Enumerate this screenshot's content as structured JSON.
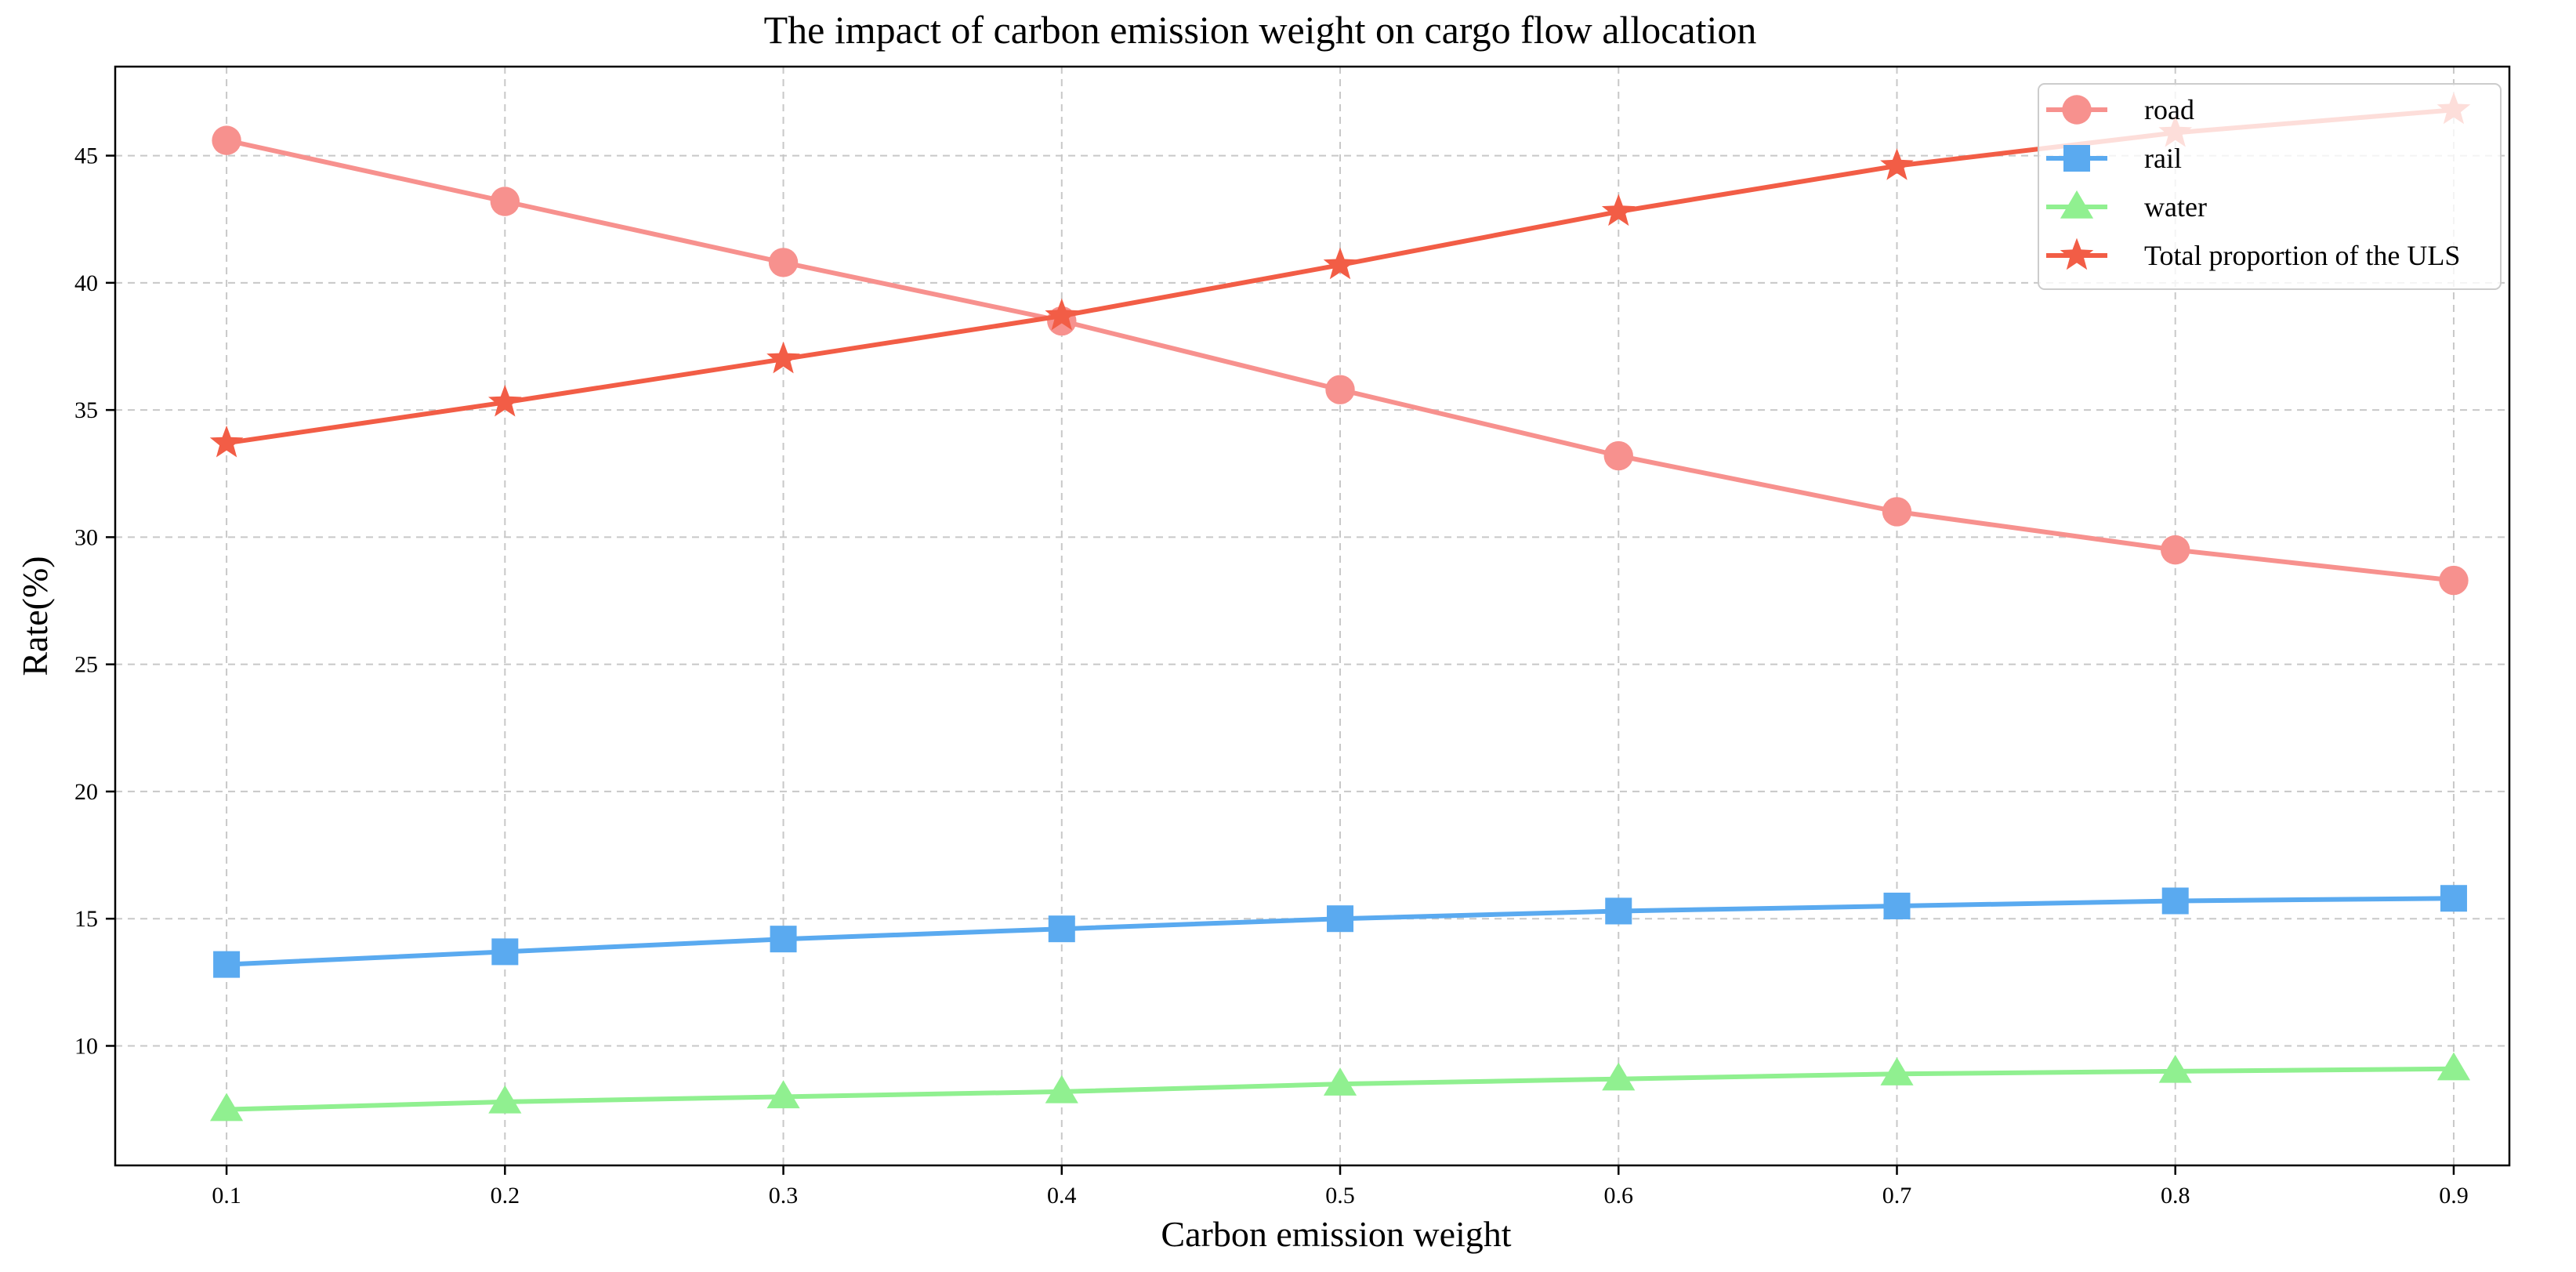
{
  "chart_data": {
    "type": "line",
    "title": "The impact of carbon emission weight on cargo flow allocation",
    "xlabel": "Carbon emission weight",
    "ylabel": "Rate(%)",
    "x": [
      0.1,
      0.2,
      0.3,
      0.4,
      0.5,
      0.6,
      0.7,
      0.8,
      0.9
    ],
    "x_tick_labels": [
      "0.1",
      "0.2",
      "0.3",
      "0.4",
      "0.5",
      "0.6",
      "0.7",
      "0.8",
      "0.9"
    ],
    "xlim": [
      0.06,
      0.92
    ],
    "ylim": [
      5.3,
      48.5
    ],
    "y_ticks": [
      10,
      15,
      20,
      25,
      30,
      35,
      40,
      45
    ],
    "y_tick_labels": [
      "10",
      "15",
      "20",
      "25",
      "30",
      "35",
      "40",
      "45"
    ],
    "grid": true,
    "legend_position": "top-right",
    "series": [
      {
        "name": "road",
        "color": "#F7918E",
        "marker": "circle",
        "values": [
          45.6,
          43.2,
          40.8,
          38.5,
          35.8,
          33.2,
          31.0,
          29.5,
          28.3
        ]
      },
      {
        "name": "rail",
        "color": "#5AAAF0",
        "marker": "square",
        "values": [
          13.2,
          13.7,
          14.2,
          14.6,
          15.0,
          15.3,
          15.5,
          15.7,
          15.8
        ]
      },
      {
        "name": "water",
        "color": "#90F090",
        "marker": "triangle",
        "values": [
          7.5,
          7.8,
          8.0,
          8.2,
          8.5,
          8.7,
          8.9,
          9.0,
          9.1
        ]
      },
      {
        "name": "Total proportion of the ULS",
        "color": "#F25D46",
        "marker": "star",
        "values": [
          33.7,
          35.3,
          37.0,
          38.7,
          40.7,
          42.8,
          44.6,
          45.9,
          46.8
        ]
      }
    ]
  }
}
